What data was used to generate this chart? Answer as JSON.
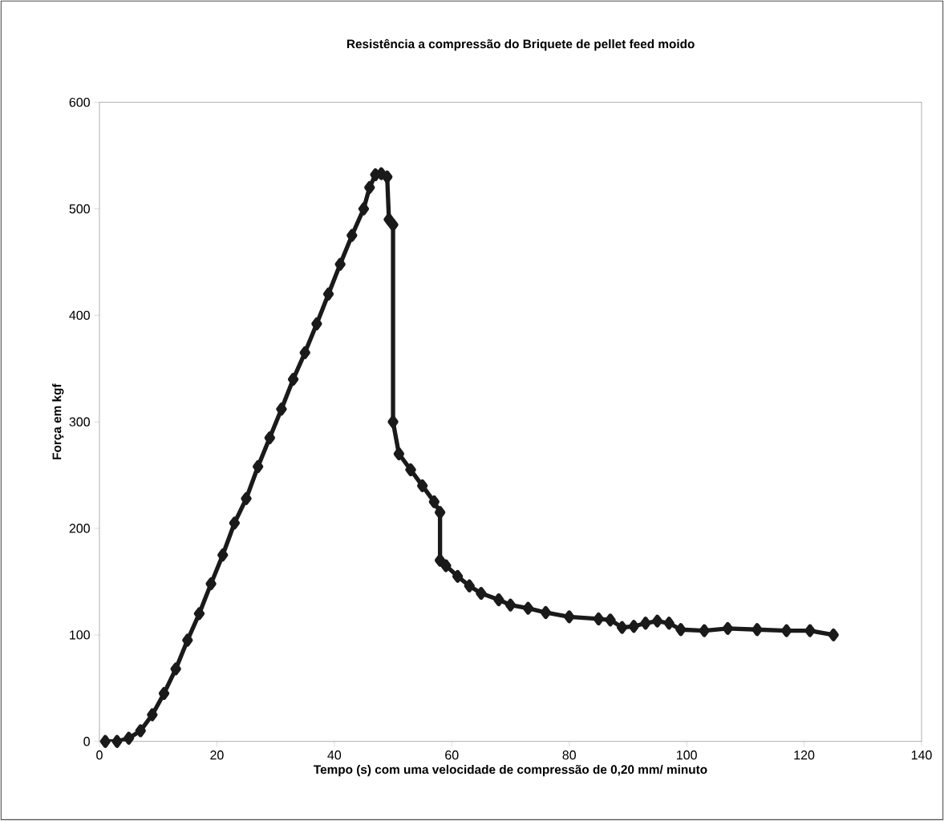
{
  "chart_data": {
    "type": "line",
    "title": "Resistência a compressão do Briquete de pellet feed moido",
    "xlabel": "Tempo (s) com uma velocidade de compressão de 0,20 mm/ minuto",
    "ylabel": "Força em kgf",
    "xlim": [
      0,
      140
    ],
    "xticks": [
      0,
      20,
      40,
      60,
      80,
      100,
      120,
      140
    ],
    "ylim": [
      0,
      600
    ],
    "yticks": [
      0,
      100,
      200,
      300,
      400,
      500,
      600
    ],
    "grid": false,
    "legend": false,
    "marker": "diamond",
    "line_style": "solid",
    "series": [
      {
        "color": "#1a1a1a",
        "x": [
          1,
          3,
          5,
          7,
          9,
          11,
          13,
          15,
          17,
          19,
          21,
          23,
          25,
          27,
          29,
          31,
          33,
          35,
          37,
          39,
          41,
          43,
          45,
          46,
          47,
          48,
          49,
          49.3,
          50,
          50,
          51,
          53,
          55,
          57,
          58,
          58,
          59,
          61,
          63,
          65,
          68,
          70,
          73,
          76,
          80,
          85,
          87,
          89,
          91,
          93,
          95,
          97,
          99,
          103,
          107,
          112,
          117,
          121,
          125
        ],
        "values": [
          0,
          0,
          3,
          10,
          25,
          45,
          68,
          95,
          120,
          148,
          175,
          205,
          228,
          258,
          285,
          312,
          340,
          365,
          392,
          420,
          448,
          475,
          500,
          520,
          532,
          533,
          530,
          490,
          485,
          300,
          270,
          255,
          240,
          225,
          215,
          170,
          165,
          155,
          146,
          139,
          133,
          128,
          125,
          121,
          117,
          115,
          114,
          107,
          108,
          111,
          113,
          111,
          105,
          104,
          106,
          105,
          104,
          104,
          100
        ]
      }
    ]
  }
}
